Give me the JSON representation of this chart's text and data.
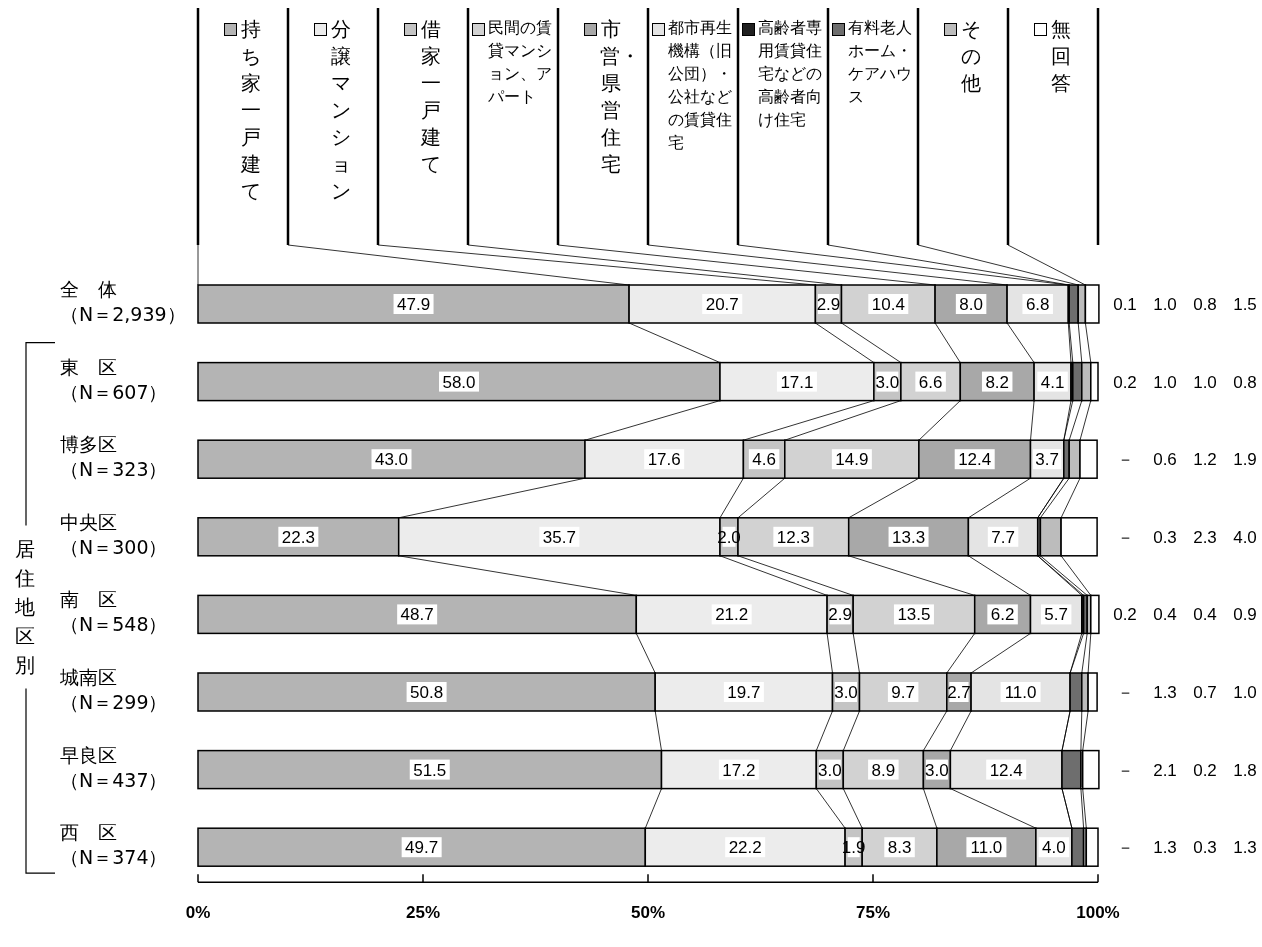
{
  "chart_data": {
    "type": "bar",
    "orientation": "horizontal",
    "stacked": true,
    "legend": "top",
    "categories": [
      "全　体（N＝2,939）",
      "東　区（N＝607）",
      "博多区（N＝323）",
      "中央区（N＝300）",
      "南　区（N＝548）",
      "城南区（N＝299）",
      "早良区（N＝437）",
      "西　区（N＝374）"
    ],
    "series": [
      {
        "name": "持ち家一戸建て",
        "color": "#b4b4b4",
        "values": [
          47.9,
          58.0,
          43.0,
          22.3,
          48.7,
          50.8,
          51.5,
          49.7
        ],
        "value_labels": [
          "47.9",
          "58.0",
          "43.0",
          "22.3",
          "48.7",
          "50.8",
          "51.5",
          "49.7"
        ]
      },
      {
        "name": "分譲マンション",
        "color": "#ececec",
        "values": [
          20.7,
          17.1,
          17.6,
          35.7,
          21.2,
          19.7,
          17.2,
          22.2
        ],
        "value_labels": [
          "20.7",
          "17.1",
          "17.6",
          "35.7",
          "21.2",
          "19.7",
          "17.2",
          "22.2"
        ]
      },
      {
        "name": "借家一戸建て",
        "color": "#c4c4c4",
        "values": [
          2.9,
          3.0,
          4.6,
          2.0,
          2.9,
          3.0,
          3.0,
          1.9
        ],
        "value_labels": [
          "2.9",
          "3.0",
          "4.6",
          "2.0",
          "2.9",
          "3.0",
          "3.0",
          "1.9"
        ]
      },
      {
        "name": "民間の賃貸マンション、アパート",
        "color": "#d2d2d2",
        "values": [
          10.4,
          6.6,
          14.9,
          12.3,
          13.5,
          9.7,
          8.9,
          8.3
        ],
        "value_labels": [
          "10.4",
          "6.6",
          "14.9",
          "12.3",
          "13.5",
          "9.7",
          "8.9",
          "8.3"
        ]
      },
      {
        "name": "市営・県営住宅",
        "color": "#a8a8a8",
        "values": [
          8.0,
          8.2,
          12.4,
          13.3,
          6.2,
          2.7,
          3.0,
          11.0
        ],
        "value_labels": [
          "8.0",
          "8.2",
          "12.4",
          "13.3",
          "6.2",
          "2.7",
          "3.0",
          "11.0"
        ]
      },
      {
        "name": "都市再生機構（旧公団）・公社などの賃貸住宅",
        "color": "#e4e4e4",
        "values": [
          6.8,
          4.1,
          3.7,
          7.7,
          5.7,
          11.0,
          12.4,
          4.0
        ],
        "value_labels": [
          "6.8",
          "4.1",
          "3.7",
          "7.7",
          "5.7",
          "11.0",
          "12.4",
          "4.0"
        ]
      },
      {
        "name": "高齢者専用賃貸住宅などの高齢者向け住宅",
        "color": "#202020",
        "values": [
          0.1,
          0.2,
          null,
          null,
          0.2,
          null,
          null,
          null
        ],
        "value_labels": [
          "0.1",
          "0.2",
          "－",
          "－",
          "0.2",
          "－",
          "－",
          "－"
        ]
      },
      {
        "name": "有料老人ホーム・ケアハウス",
        "color": "#6e6e6e",
        "values": [
          1.0,
          1.0,
          0.6,
          0.3,
          0.4,
          1.3,
          2.1,
          1.3
        ],
        "value_labels": [
          "1.0",
          "1.0",
          "0.6",
          "0.3",
          "0.4",
          "1.3",
          "2.1",
          "1.3"
        ]
      },
      {
        "name": "その他",
        "color": "#bcbcbc",
        "values": [
          0.8,
          1.0,
          1.2,
          2.3,
          0.4,
          0.7,
          0.2,
          0.3
        ],
        "value_labels": [
          "0.8",
          "1.0",
          "1.2",
          "2.3",
          "0.4",
          "0.7",
          "0.2",
          "0.3"
        ]
      },
      {
        "name": "無回答",
        "color": "#ffffff",
        "values": [
          1.5,
          0.8,
          1.9,
          4.0,
          0.9,
          1.0,
          1.8,
          1.3
        ],
        "value_labels": [
          "1.5",
          "0.8",
          "1.9",
          "4.0",
          "0.9",
          "1.0",
          "1.8",
          "1.3"
        ]
      }
    ],
    "xlim": [
      0,
      100
    ],
    "xticks": [
      {
        "value": 0,
        "label": "0%"
      },
      {
        "value": 25,
        "label": "25%"
      },
      {
        "value": 50,
        "label": "50%"
      },
      {
        "value": 75,
        "label": "75%"
      },
      {
        "value": 100,
        "label": "100%"
      }
    ],
    "annotations": [
      "居住地区別"
    ]
  }
}
